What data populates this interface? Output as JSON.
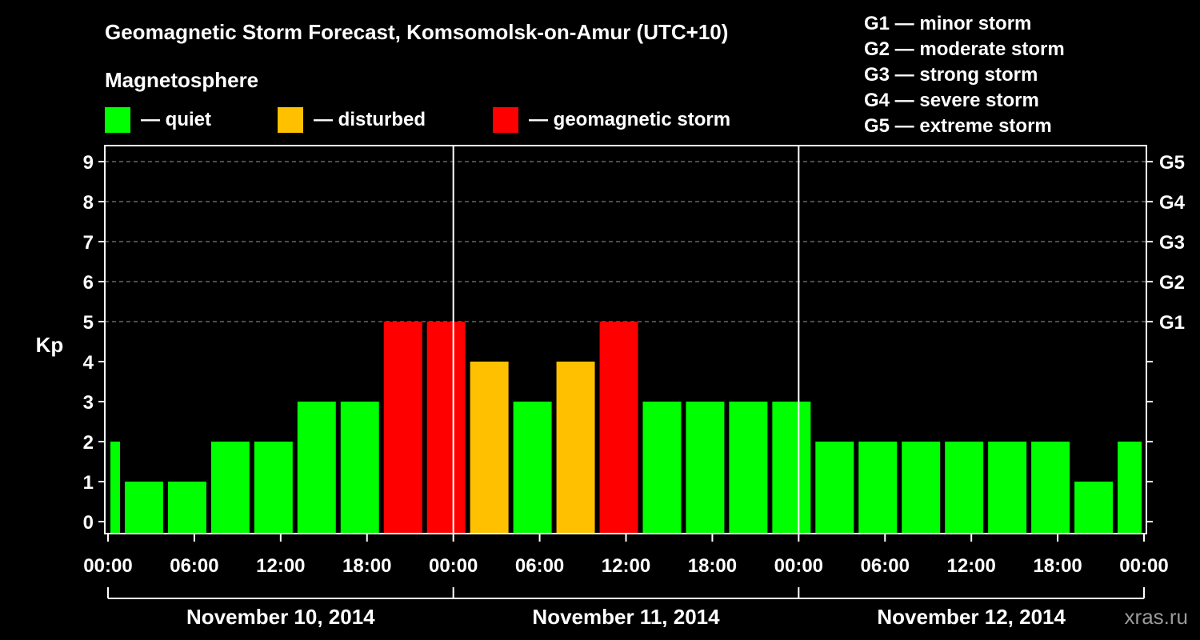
{
  "title": "Geomagnetic Storm Forecast, Komsomolsk-on-Amur (UTC+10)",
  "legend": {
    "heading": "Magnetosphere",
    "items": [
      {
        "label": "— quiet",
        "color": "#00ff00"
      },
      {
        "label": "— disturbed",
        "color": "#ffc000"
      },
      {
        "label": "— geomagnetic storm",
        "color": "#ff0000"
      }
    ]
  },
  "g_scale_legend": [
    "G1 — minor storm",
    "G2 — moderate storm",
    "G3 — strong storm",
    "G4 — severe storm",
    "G5 — extreme storm"
  ],
  "watermark": "xras.ru",
  "colors": {
    "background": "#000000",
    "axis": "#ffffff",
    "grid": "#9a9a9a",
    "quiet": "#00ff00",
    "disturbed": "#ffc000",
    "storm": "#ff0000"
  },
  "chart_data": {
    "type": "bar",
    "title": "Geomagnetic Storm Forecast, Komsomolsk-on-Amur (UTC+10)",
    "ylabel": "Kp",
    "xlabel": "",
    "ylim": [
      0,
      9
    ],
    "xlim_hours": [
      0,
      72
    ],
    "y_ticks": [
      0,
      1,
      2,
      3,
      4,
      5,
      6,
      7,
      8,
      9
    ],
    "right_axis_labels": [
      {
        "kp": 5,
        "label": "G1"
      },
      {
        "kp": 6,
        "label": "G2"
      },
      {
        "kp": 7,
        "label": "G3"
      },
      {
        "kp": 8,
        "label": "G4"
      },
      {
        "kp": 9,
        "label": "G5"
      }
    ],
    "x_tick_labels": [
      {
        "hour": 0,
        "label": "00:00"
      },
      {
        "hour": 6,
        "label": "06:00"
      },
      {
        "hour": 12,
        "label": "12:00"
      },
      {
        "hour": 18,
        "label": "18:00"
      },
      {
        "hour": 24,
        "label": "00:00"
      },
      {
        "hour": 30,
        "label": "06:00"
      },
      {
        "hour": 36,
        "label": "12:00"
      },
      {
        "hour": 42,
        "label": "18:00"
      },
      {
        "hour": 48,
        "label": "00:00"
      },
      {
        "hour": 54,
        "label": "06:00"
      },
      {
        "hour": 60,
        "label": "12:00"
      },
      {
        "hour": 66,
        "label": "18:00"
      },
      {
        "hour": 72,
        "label": "00:00"
      }
    ],
    "day_separators_hours": [
      24,
      48
    ],
    "days": [
      {
        "start": 0,
        "end": 24,
        "label": "November 10, 2014"
      },
      {
        "start": 24,
        "end": 48,
        "label": "November 11, 2014"
      },
      {
        "start": 48,
        "end": 72,
        "label": "November 12, 2014"
      }
    ],
    "bars": [
      {
        "start": 0,
        "end": 1,
        "kp": 2,
        "level": "quiet"
      },
      {
        "start": 1,
        "end": 4,
        "kp": 1,
        "level": "quiet"
      },
      {
        "start": 4,
        "end": 7,
        "kp": 1,
        "level": "quiet"
      },
      {
        "start": 7,
        "end": 10,
        "kp": 2,
        "level": "quiet"
      },
      {
        "start": 10,
        "end": 13,
        "kp": 2,
        "level": "quiet"
      },
      {
        "start": 13,
        "end": 16,
        "kp": 3,
        "level": "quiet"
      },
      {
        "start": 16,
        "end": 19,
        "kp": 3,
        "level": "quiet"
      },
      {
        "start": 19,
        "end": 22,
        "kp": 5,
        "level": "storm"
      },
      {
        "start": 22,
        "end": 25,
        "kp": 5,
        "level": "storm"
      },
      {
        "start": 25,
        "end": 28,
        "kp": 4,
        "level": "disturbed"
      },
      {
        "start": 28,
        "end": 31,
        "kp": 3,
        "level": "quiet"
      },
      {
        "start": 31,
        "end": 34,
        "kp": 4,
        "level": "disturbed"
      },
      {
        "start": 34,
        "end": 37,
        "kp": 5,
        "level": "storm"
      },
      {
        "start": 37,
        "end": 40,
        "kp": 3,
        "level": "quiet"
      },
      {
        "start": 40,
        "end": 43,
        "kp": 3,
        "level": "quiet"
      },
      {
        "start": 43,
        "end": 46,
        "kp": 3,
        "level": "quiet"
      },
      {
        "start": 46,
        "end": 49,
        "kp": 3,
        "level": "quiet"
      },
      {
        "start": 49,
        "end": 52,
        "kp": 2,
        "level": "quiet"
      },
      {
        "start": 52,
        "end": 55,
        "kp": 2,
        "level": "quiet"
      },
      {
        "start": 55,
        "end": 58,
        "kp": 2,
        "level": "quiet"
      },
      {
        "start": 58,
        "end": 61,
        "kp": 2,
        "level": "quiet"
      },
      {
        "start": 61,
        "end": 64,
        "kp": 2,
        "level": "quiet"
      },
      {
        "start": 64,
        "end": 67,
        "kp": 2,
        "level": "quiet"
      },
      {
        "start": 67,
        "end": 70,
        "kp": 1,
        "level": "quiet"
      },
      {
        "start": 70,
        "end": 72,
        "kp": 2,
        "level": "quiet"
      }
    ]
  }
}
